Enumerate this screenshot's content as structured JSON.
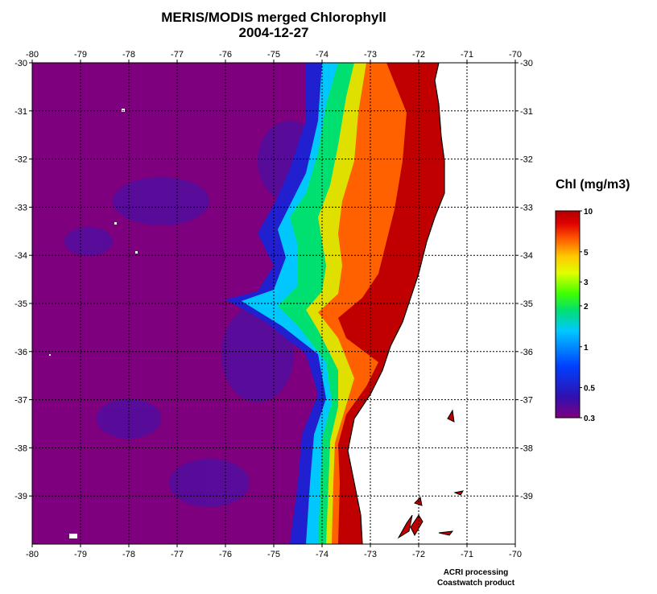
{
  "title_line1": "MERIS/MODIS merged Chlorophyll",
  "title_line2": "2004-12-27",
  "colorbar": {
    "title": "Chl (mg/m3)",
    "ticks": [
      "10",
      "5",
      "3",
      "2",
      "1",
      "0.5",
      "0.3"
    ],
    "tick_values": [
      10,
      5,
      3,
      2,
      1,
      0.5,
      0.3
    ],
    "range": [
      0.3,
      10
    ],
    "scale": "log",
    "colors": [
      "#7f007f",
      "#3010b0",
      "#0040ff",
      "#00c8ff",
      "#00e070",
      "#40ff00",
      "#e0ff00",
      "#ffc800",
      "#ff6000",
      "#e00000",
      "#b00000"
    ]
  },
  "map": {
    "lon_labels": [
      "-80",
      "-79",
      "-78",
      "-77",
      "-76",
      "-75",
      "-74",
      "-73",
      "-72",
      "-71",
      "-70"
    ],
    "lat_labels": [
      "-30",
      "-31",
      "-32",
      "-33",
      "-34",
      "-35",
      "-36",
      "-37",
      "-38",
      "-39"
    ],
    "lon_range": [
      -80,
      -70
    ],
    "lat_range": [
      -40,
      -30
    ],
    "ocean_color": "#7f007f",
    "land_color": "#ffffff",
    "gridlines": "dotted"
  },
  "footer_line1": "ACRI processing",
  "footer_line2": "Coastwatch product"
}
